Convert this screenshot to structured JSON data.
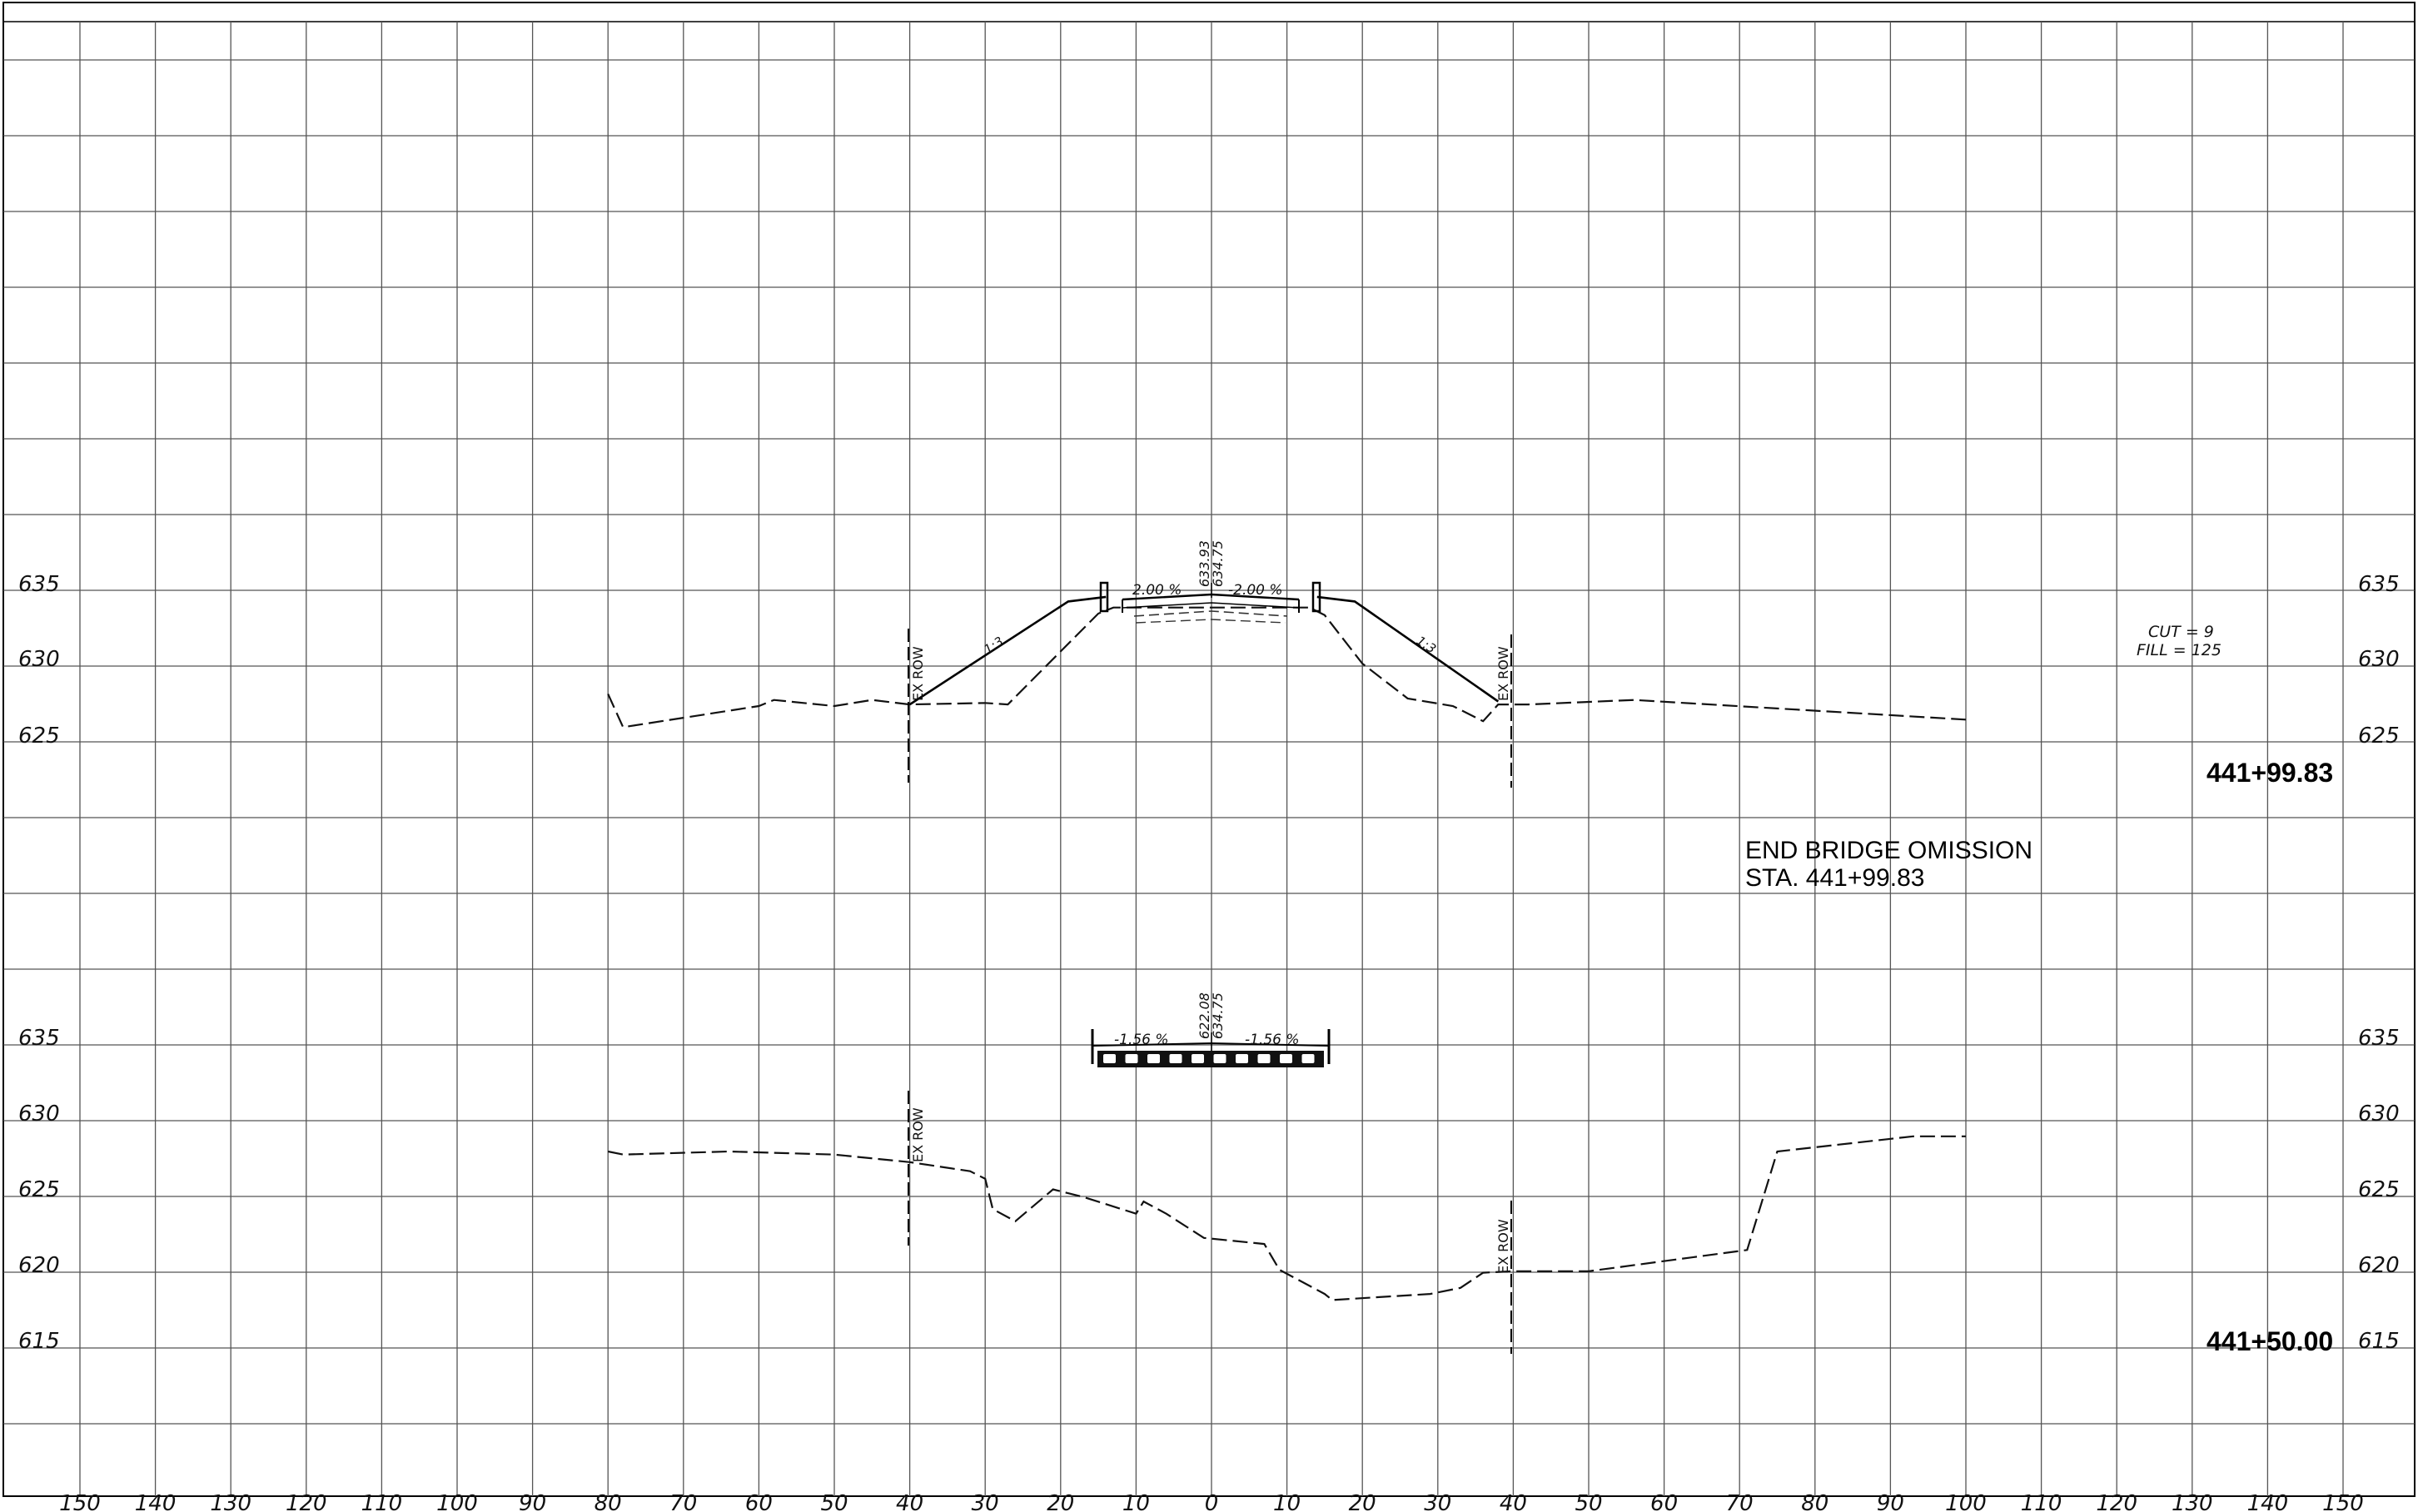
{
  "sheet": {
    "x_axis_ticks": [
      "150",
      "140",
      "130",
      "120",
      "110",
      "100",
      "90",
      "80",
      "70",
      "60",
      "50",
      "40",
      "30",
      "20",
      "10",
      "0",
      "10",
      "20",
      "30",
      "40",
      "50",
      "60",
      "70",
      "80",
      "90",
      "100",
      "110",
      "120",
      "130",
      "140",
      "150"
    ],
    "note": {
      "line1": "END BRIDGE OMISSION",
      "line2": "STA. 441+99.83"
    }
  },
  "sections": [
    {
      "station": "441+99.83",
      "elev_labels": [
        "635",
        "630",
        "625"
      ],
      "cut": "CUT = 9",
      "fill": "FILL = 125",
      "row_left": "EX ROW",
      "row_right": "EX ROW",
      "crown_elev_1": "633.93",
      "crown_elev_2": "634.75",
      "slope_left": "2.00 %",
      "slope_right": "-2.00 %",
      "side_slope_left": "1:3",
      "side_slope_right": "1:3",
      "existing_ground": [
        [
          -80,
          628
        ],
        [
          -78,
          625.8
        ],
        [
          -60,
          627.2
        ],
        [
          -58,
          627.6
        ],
        [
          -50,
          627.2
        ],
        [
          -45,
          627.6
        ],
        [
          -40,
          627.3
        ],
        [
          -30,
          627.4
        ],
        [
          -27,
          627.3
        ],
        [
          -20,
          630.8
        ],
        [
          -15,
          633.3
        ],
        [
          -13,
          633.7
        ],
        [
          13,
          633.7
        ],
        [
          15,
          633.2
        ],
        [
          20,
          630
        ],
        [
          26,
          627.7
        ],
        [
          32,
          627.2
        ],
        [
          36,
          626.2
        ],
        [
          38,
          627.3
        ],
        [
          42,
          627.3
        ],
        [
          56,
          627.6
        ],
        [
          100,
          626.3
        ]
      ],
      "proposed_left": [
        [
          -40,
          627.3
        ],
        [
          -19,
          634.1
        ],
        [
          -14,
          634.4
        ]
      ],
      "proposed_right": [
        [
          14,
          634.4
        ],
        [
          19,
          634.1
        ],
        [
          38,
          627.5
        ]
      ]
    },
    {
      "station": "441+50.00",
      "elev_labels": [
        "635",
        "630",
        "625",
        "620",
        "615"
      ],
      "row_left": "EX ROW",
      "row_right": "EX ROW",
      "crown_elev_1": "622.08",
      "crown_elev_2": "634.75",
      "slope_left": "-1.56 %",
      "slope_right": "-1.56 %",
      "existing_ground": [
        [
          -80,
          627.8
        ],
        [
          -78,
          627.6
        ],
        [
          -64,
          627.8
        ],
        [
          -50,
          627.6
        ],
        [
          -40,
          627.1
        ],
        [
          -32,
          626.5
        ],
        [
          -30,
          626
        ],
        [
          -29,
          624
        ],
        [
          -26,
          623.2
        ],
        [
          -21,
          625.3
        ],
        [
          -17,
          624.8
        ],
        [
          -10,
          623.7
        ],
        [
          -9,
          624.5
        ],
        [
          -6,
          623.7
        ],
        [
          -1,
          622.1
        ],
        [
          7,
          621.7
        ],
        [
          9,
          620
        ],
        [
          15,
          618.4
        ],
        [
          16,
          618
        ],
        [
          29,
          618.4
        ],
        [
          33,
          618.8
        ],
        [
          36,
          619.8
        ],
        [
          40,
          619.9
        ],
        [
          50,
          619.9
        ],
        [
          71,
          621.3
        ],
        [
          75,
          627.8
        ],
        [
          93,
          628.8
        ],
        [
          100,
          628.8
        ]
      ]
    }
  ]
}
